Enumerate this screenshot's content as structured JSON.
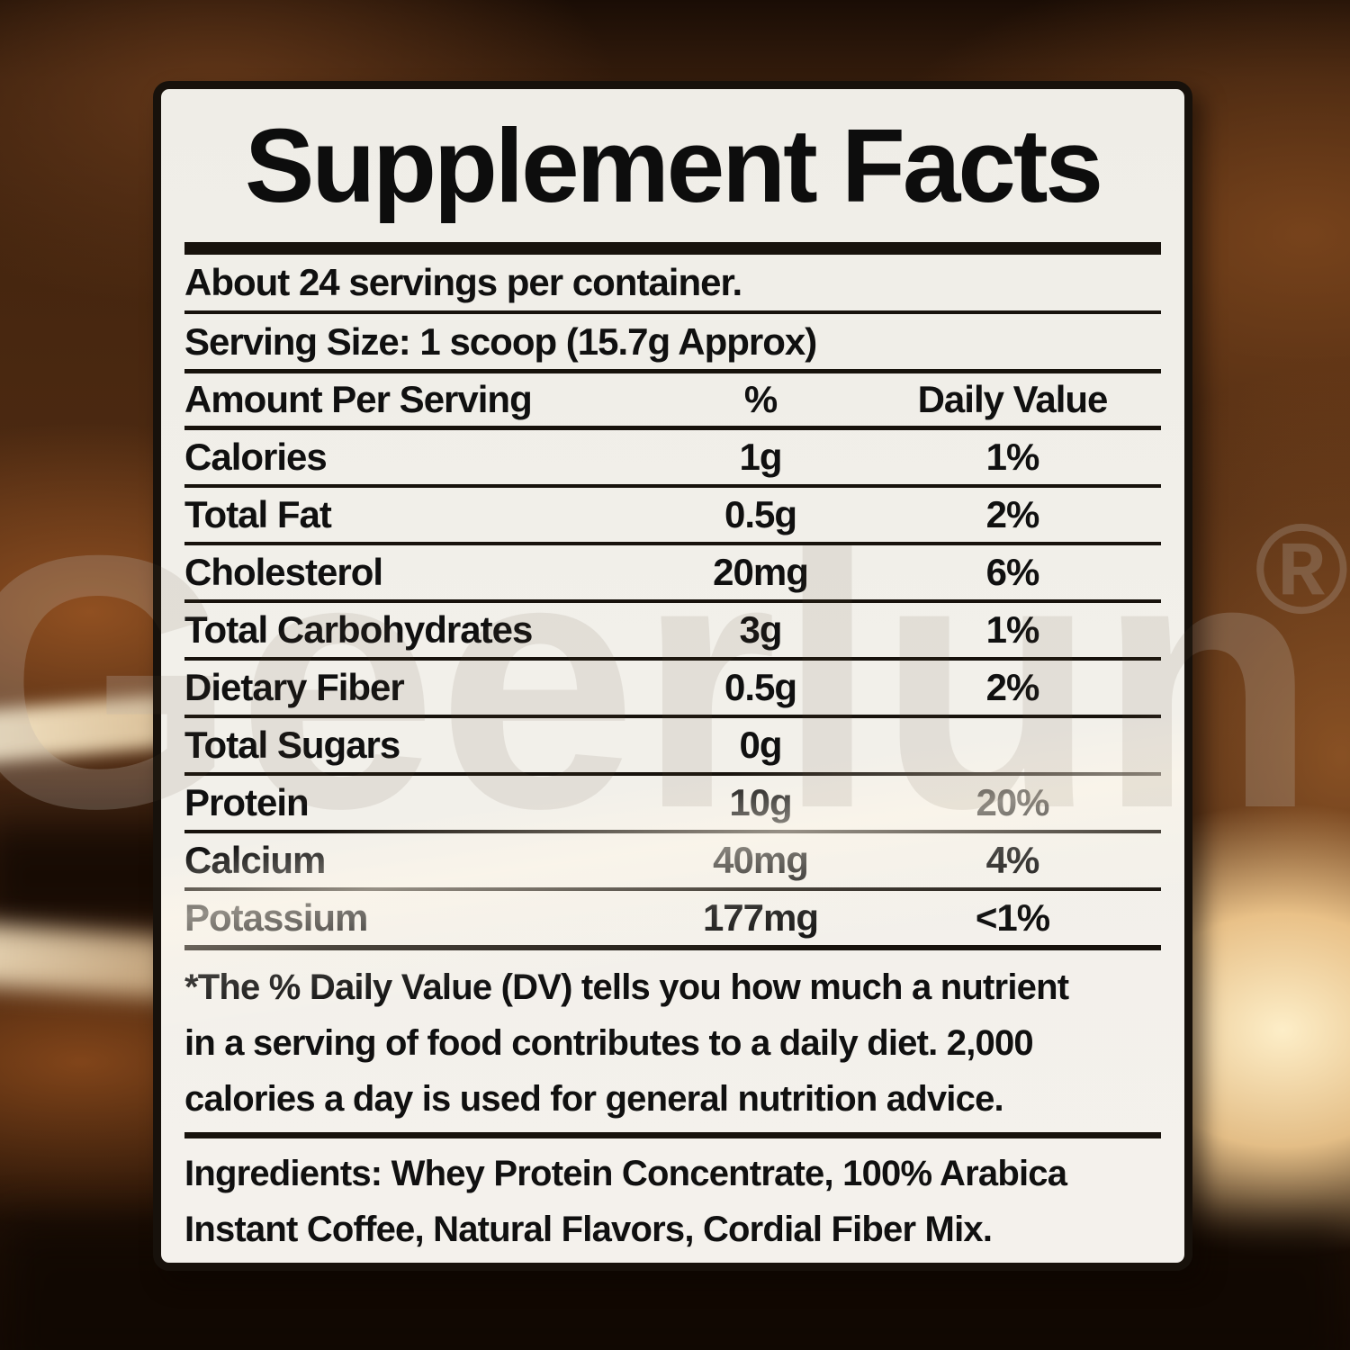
{
  "label": {
    "title": "Supplement Facts",
    "servings_line": "About 24 servings per container.",
    "serving_size_line": "Serving Size: 1 scoop (15.7g Approx)",
    "columns": {
      "nutrient": "Amount Per Serving",
      "amount": "%",
      "daily_value": "Daily Value"
    },
    "rows": [
      {
        "name": "Calories",
        "amount": "1g",
        "dv": "1%"
      },
      {
        "name": "Total Fat",
        "amount": "0.5g",
        "dv": "2%"
      },
      {
        "name": "Cholesterol",
        "amount": "20mg",
        "dv": "6%"
      },
      {
        "name": "Total Carbohydrates",
        "amount": "3g",
        "dv": "1%"
      },
      {
        "name": "Dietary Fiber",
        "amount": "0.5g",
        "dv": "2%"
      },
      {
        "name": "Total Sugars",
        "amount": "0g",
        "dv": ""
      },
      {
        "name": "Protein",
        "amount": "10g",
        "dv": "20%"
      },
      {
        "name": "Calcium",
        "amount": "40mg",
        "dv": "4%"
      },
      {
        "name": "Potassium",
        "amount": "177mg",
        "dv": "<1%"
      }
    ],
    "footnote_lines": [
      "*The % Daily Value (DV) tells you how much a nutrient",
      "in a serving of food contributes to a daily diet. 2,000",
      "calories a day is used for general nutrition advice."
    ],
    "ingredients_lines": [
      "Ingredients: Whey Protein Concentrate, 100% Arabica",
      "Instant Coffee, Natural Flavors, Cordial Fiber Mix."
    ]
  },
  "watermark": {
    "text": "Geerlun",
    "registered": "®"
  },
  "colors": {
    "panel_background": "#f2f0ea",
    "panel_border": "#17110b",
    "text": "#101010",
    "background_brown_dark": "#2d1709",
    "background_brown_mid": "#4d2a12",
    "background_glow_cream": "#fdeec8"
  }
}
